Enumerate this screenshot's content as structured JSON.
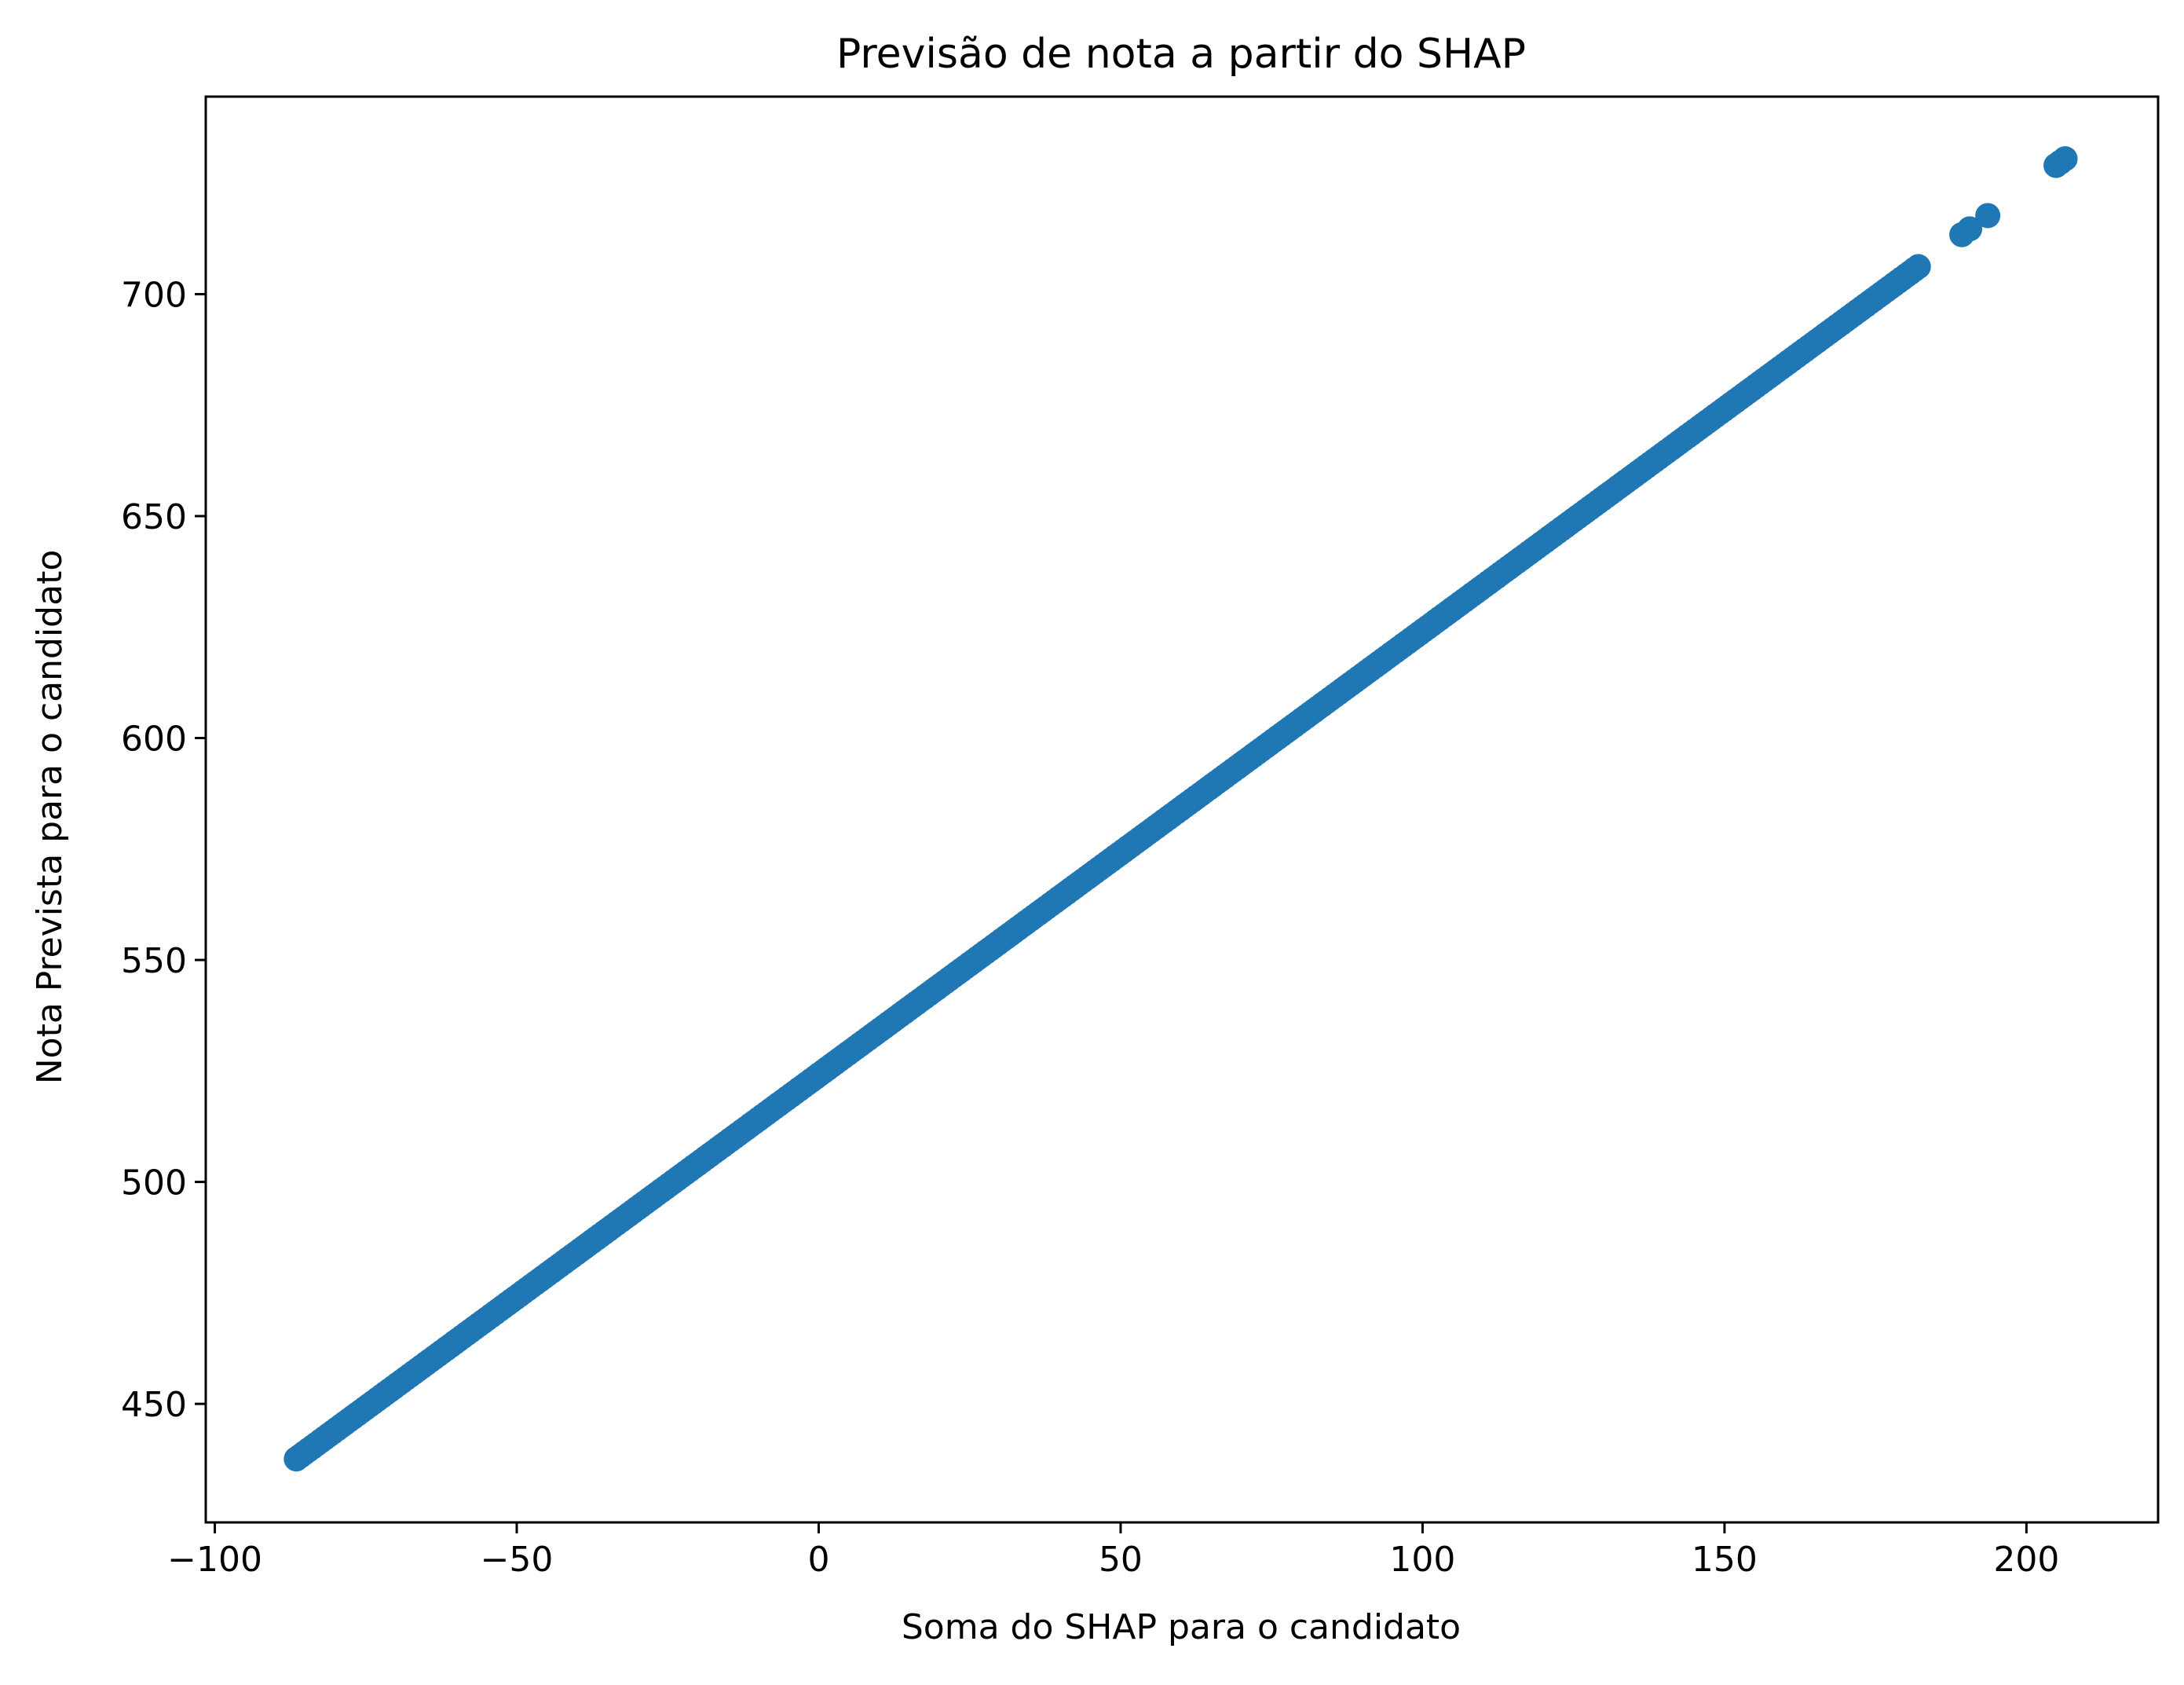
{
  "chart_data": {
    "type": "scatter",
    "title": "Previsão de nota a partir do SHAP",
    "xlabel": "Soma do SHAP para o candidato",
    "ylabel": "Nota Prevista para o candidato",
    "xlim": [
      -101.5,
      221.8
    ],
    "ylim": [
      423.3,
      744.5
    ],
    "xticks": [
      -100,
      -50,
      0,
      50,
      100,
      150,
      200
    ],
    "xtick_labels": [
      "−100",
      "−50",
      "0",
      "50",
      "100",
      "150",
      "200"
    ],
    "yticks": [
      450,
      500,
      550,
      600,
      650,
      700
    ],
    "ytick_labels": [
      "450",
      "500",
      "550",
      "600",
      "650",
      "700"
    ],
    "grid": false,
    "legend": "none",
    "marker_color": "#1f77b4",
    "series": [
      {
        "relation": "y = x + 524.1",
        "x_dense_range": [
          -86.5,
          182.1
        ],
        "x_sampled": [
          -86.5,
          -80,
          -70,
          -60,
          -50,
          -40,
          -30,
          -20,
          -10,
          0,
          10,
          20,
          30,
          40,
          50,
          60,
          70,
          80,
          90,
          100,
          110,
          120,
          130,
          140,
          150,
          160,
          170,
          180,
          182.1
        ],
        "x_isolated": [
          189.3,
          190.6,
          193.6,
          204.9,
          205.6,
          206.4
        ]
      }
    ]
  }
}
